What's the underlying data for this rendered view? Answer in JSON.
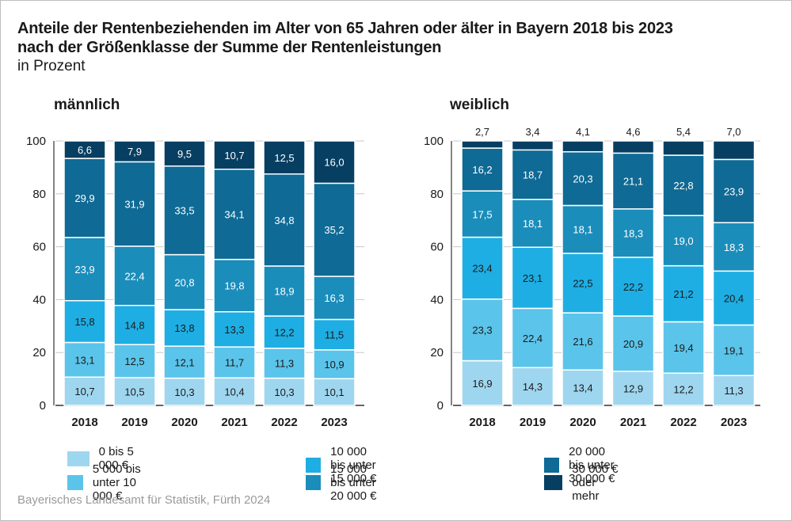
{
  "title_line1": "Anteile der Rentenbeziehenden im Alter von 65 Jahren oder älter in Bayern 2018 bis 2023",
  "title_line2": "nach der Größenklasse der Summe der Rentenleistungen",
  "unit": "in Prozent",
  "source": "Bayerisches Landesamt für Statistik, Fürth 2024",
  "legend": [
    {
      "label": "0 bis 5 000 €",
      "color": "#9fd6ef"
    },
    {
      "label": "5 000 bis unter 10 000 €",
      "color": "#5bc4ea"
    },
    {
      "label": "10 000 bis unter 15 000 €",
      "color": "#1eaee3"
    },
    {
      "label": "15 000 bis unter 20 000 €",
      "color": "#1b8dbb"
    },
    {
      "label": "20 000 bis unter 30 000 €",
      "color": "#0f6a95"
    },
    {
      "label": "30 000 € oder mehr",
      "color": "#073f62"
    }
  ],
  "chart_data": [
    {
      "type": "bar",
      "stacked": true,
      "title": "männlich",
      "categories": [
        "2018",
        "2019",
        "2020",
        "2021",
        "2022",
        "2023"
      ],
      "ylim": [
        0,
        100
      ],
      "yticks": [
        0,
        20,
        40,
        60,
        80,
        100
      ],
      "series": [
        {
          "name": "0 bis 5 000 €",
          "values": [
            10.7,
            10.5,
            10.3,
            10.4,
            10.3,
            10.1
          ],
          "labels": [
            "10,7",
            "10,5",
            "10,3",
            "10,4",
            "10,3",
            "10,1"
          ]
        },
        {
          "name": "5 000 bis unter 10 000 €",
          "values": [
            13.1,
            12.5,
            12.1,
            11.7,
            11.3,
            10.9
          ],
          "labels": [
            "13,1",
            "12,5",
            "12,1",
            "11,7",
            "11,3",
            "10,9"
          ]
        },
        {
          "name": "10 000 bis unter 15 000 €",
          "values": [
            15.8,
            14.8,
            13.8,
            13.3,
            12.2,
            11.5
          ],
          "labels": [
            "15,8",
            "14,8",
            "13,8",
            "13,3",
            "12,2",
            "11,5"
          ]
        },
        {
          "name": "15 000 bis unter 20 000 €",
          "values": [
            23.9,
            22.4,
            20.8,
            19.8,
            18.9,
            16.3
          ],
          "labels": [
            "23,9",
            "22,4",
            "20,8",
            "19,8",
            "18,9",
            "16,3"
          ]
        },
        {
          "name": "20 000 bis unter 30 000 €",
          "values": [
            29.9,
            31.9,
            33.5,
            34.1,
            34.8,
            35.2
          ],
          "labels": [
            "29,9",
            "31,9",
            "33,5",
            "34,1",
            "34,8",
            "35,2"
          ]
        },
        {
          "name": "30 000 € oder mehr",
          "values": [
            6.6,
            7.9,
            9.5,
            10.7,
            12.5,
            16.0
          ],
          "labels": [
            "6,6",
            "7,9",
            "9,5",
            "10,7",
            "12,5",
            "16,0"
          ]
        }
      ]
    },
    {
      "type": "bar",
      "stacked": true,
      "title": "weiblich",
      "categories": [
        "2018",
        "2019",
        "2020",
        "2021",
        "2022",
        "2023"
      ],
      "ylim": [
        0,
        100
      ],
      "yticks": [
        0,
        20,
        40,
        60,
        80,
        100
      ],
      "series": [
        {
          "name": "0 bis 5 000 €",
          "values": [
            16.9,
            14.3,
            13.4,
            12.9,
            12.2,
            11.3
          ],
          "labels": [
            "16,9",
            "14,3",
            "13,4",
            "12,9",
            "12,2",
            "11,3"
          ]
        },
        {
          "name": "5 000 bis unter 10 000 €",
          "values": [
            23.3,
            22.4,
            21.6,
            20.9,
            19.4,
            19.1
          ],
          "labels": [
            "23,3",
            "22,4",
            "21,6",
            "20,9",
            "19,4",
            "19,1"
          ]
        },
        {
          "name": "10 000 bis unter 15 000 €",
          "values": [
            23.4,
            23.1,
            22.5,
            22.2,
            21.2,
            20.4
          ],
          "labels": [
            "23,4",
            "23,1",
            "22,5",
            "22,2",
            "21,2",
            "20,4"
          ]
        },
        {
          "name": "15 000 bis unter 20 000 €",
          "values": [
            17.5,
            18.1,
            18.1,
            18.3,
            19.0,
            18.3
          ],
          "labels": [
            "17,5",
            "18,1",
            "18,1",
            "18,3",
            "19,0",
            "18,3"
          ]
        },
        {
          "name": "20 000 bis unter 30 000 €",
          "values": [
            16.2,
            18.7,
            20.3,
            21.1,
            22.8,
            23.9
          ],
          "labels": [
            "16,2",
            "18,7",
            "20,3",
            "21,1",
            "22,8",
            "23,9"
          ]
        },
        {
          "name": "30 000 € oder mehr",
          "values": [
            2.7,
            3.4,
            4.1,
            4.6,
            5.4,
            7.0
          ],
          "labels": [
            "2,7",
            "3,4",
            "4,1",
            "4,6",
            "5,4",
            "7,0"
          ]
        }
      ]
    }
  ]
}
